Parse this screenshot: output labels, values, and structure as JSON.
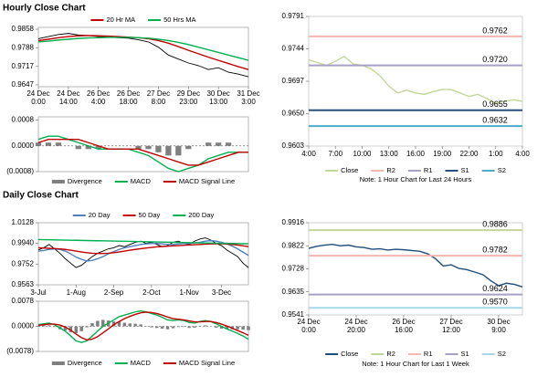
{
  "headings": [
    "Hourly Close Chart",
    "Daily Close Chart"
  ],
  "chart_data": [
    {
      "type": "line",
      "legend": "top",
      "xlim": [
        0,
        21
      ],
      "ylim": [
        0.964,
        0.9865
      ],
      "yticks": [
        0.9858,
        0.9788,
        0.9717,
        0.9647
      ],
      "xticks": [
        {
          "value": 0,
          "label": [
            "24 Dec",
            "0:00"
          ]
        },
        {
          "value": 3,
          "label": [
            "24 Dec",
            "14:00"
          ]
        },
        {
          "value": 6,
          "label": [
            "26 Dec",
            "4:00"
          ]
        },
        {
          "value": 9,
          "label": [
            "26 Dec",
            "18:00"
          ]
        },
        {
          "value": 12,
          "label": [
            "27 Dec",
            "8:00"
          ]
        },
        {
          "value": 15,
          "label": [
            "29 Dec",
            "23:00"
          ]
        },
        {
          "value": 18,
          "label": [
            "30 Dec",
            "13:00"
          ]
        },
        {
          "value": 21,
          "label": [
            "31 Dec",
            "3:00"
          ]
        }
      ],
      "series": [
        {
          "color": "#000000",
          "values": [
            0.9822,
            0.983,
            0.9838,
            0.9842,
            0.9836,
            0.9834,
            0.983,
            0.9828,
            0.9826,
            0.9824,
            0.9818,
            0.981,
            0.979,
            0.976,
            0.9745,
            0.973,
            0.972,
            0.9705,
            0.9712,
            0.9695,
            0.9688,
            0.9678
          ]
        },
        {
          "name": "20 Hr MA",
          "color": "#c00000",
          "values": [
            0.9815,
            0.982,
            0.9826,
            0.983,
            0.9833,
            0.9834,
            0.9833,
            0.9832,
            0.983,
            0.9828,
            0.9826,
            0.9822,
            0.9815,
            0.9805,
            0.9792,
            0.9778,
            0.9765,
            0.9752,
            0.974,
            0.9728,
            0.9716,
            0.9705
          ]
        },
        {
          "name": "50 Hrs MA",
          "color": "#00b050",
          "values": [
            0.981,
            0.9813,
            0.9817,
            0.982,
            0.9823,
            0.9825,
            0.9826,
            0.9827,
            0.9827,
            0.9827,
            0.9826,
            0.9824,
            0.982,
            0.9815,
            0.9808,
            0.98,
            0.979,
            0.978,
            0.977,
            0.976,
            0.975,
            0.974
          ]
        }
      ]
    },
    {
      "type": "line",
      "legend": "bottom",
      "zero_line": true,
      "xlim": [
        0,
        21
      ],
      "ylim": [
        -0.0008,
        0.0009
      ],
      "yticks": [
        0.0008,
        {
          "value": 0,
          "label": "0.0000"
        },
        {
          "value": -0.0008,
          "label": "(0.0008)"
        }
      ],
      "series": [
        {
          "name": "Divergence",
          "kind": "bar",
          "color": "#7f7f7f",
          "values": [
            0.0001,
            0.0001,
            0.0001,
            0,
            -0.0001,
            -0.0001,
            -0.0001,
            0,
            0,
            0,
            -0.0001,
            -0.0001,
            -0.0002,
            -0.0003,
            -0.0003,
            -0.0001,
            0,
            0.0001,
            0.0001,
            0.0001,
            0,
            0
          ]
        },
        {
          "name": "MACD",
          "color": "#00b050",
          "values": [
            0.0002,
            0.0003,
            0.0003,
            0.0002,
            0.0001,
            0,
            -0.0001,
            -0.0001,
            -0.0001,
            -0.0001,
            -0.0002,
            -0.0003,
            -0.0005,
            -0.0007,
            -0.0008,
            -0.0007,
            -0.0006,
            -0.0004,
            -0.0003,
            -0.0002,
            -0.0002,
            -0.0002
          ]
        },
        {
          "name": "MACD Signal Line",
          "color": "#c00000",
          "values": [
            0.0001,
            0.0002,
            0.0002,
            0.0002,
            0.0002,
            0.0001,
            0,
            -0.0001,
            -0.0001,
            -0.0001,
            -0.0001,
            -0.0002,
            -0.0003,
            -0.0004,
            -0.0005,
            -0.0006,
            -0.0006,
            -0.0005,
            -0.0004,
            -0.0003,
            -0.0002,
            -0.0002
          ]
        }
      ]
    },
    {
      "type": "line",
      "legend": "bottom",
      "note": "Note: 1 Hour Chart for Last 24 Hours",
      "xlim": [
        0,
        24
      ],
      "ylim": [
        0.9603,
        0.9791
      ],
      "yticks": [
        0.9791,
        0.9744,
        0.9697,
        {
          "value": 0.965,
          "label": "0.9650"
        },
        0.9603
      ],
      "xticks": [
        {
          "value": 0,
          "label": "4:00"
        },
        {
          "value": 3,
          "label": "7:00"
        },
        {
          "value": 6,
          "label": "10:00"
        },
        {
          "value": 9,
          "label": "13:00"
        },
        {
          "value": 12,
          "label": "16:00"
        },
        {
          "value": 15,
          "label": "19:00"
        },
        {
          "value": 18,
          "label": "22:00"
        },
        {
          "value": 21,
          "label": "1:00"
        },
        {
          "value": 24,
          "label": "4:00"
        }
      ],
      "series": [
        {
          "name": "Close",
          "color": "#c3d69b",
          "values": [
            0.9728,
            0.9724,
            0.972,
            0.9726,
            0.9733,
            0.9722,
            0.972,
            0.9715,
            0.9705,
            0.969,
            0.968,
            0.9684,
            0.968,
            0.9678,
            0.9682,
            0.9685,
            0.9685,
            0.968,
            0.9675,
            0.9678,
            0.9672,
            0.9665,
            0.9668,
            0.967,
            0.9668
          ]
        },
        {
          "name": "R2",
          "kind": "level",
          "color": "#f2b8b0",
          "values": [
            0.9762
          ],
          "value_labels": [
            "0.9762"
          ]
        },
        {
          "name": "R1",
          "kind": "level",
          "color": "#a9a0c8",
          "values": [
            0.972
          ],
          "value_labels": [
            "0.9720"
          ]
        },
        {
          "name": "S1",
          "kind": "level",
          "color": "#2c4f7c",
          "values": [
            0.9655
          ],
          "value_labels": [
            "0.9655"
          ]
        },
        {
          "name": "S2",
          "kind": "level",
          "color": "#4bacc6",
          "values": [
            0.9632
          ],
          "value_labels": [
            "0.9632"
          ]
        }
      ]
    },
    {
      "type": "line",
      "legend": "top",
      "xlim": [
        0,
        39
      ],
      "ylim": [
        0.9563,
        1.0128
      ],
      "yticks": [
        1.0128,
        {
          "value": 0.994,
          "label": "0.9940"
        },
        0.9752,
        0.9563
      ],
      "xticks": [
        {
          "value": 0,
          "label": "3-Jul"
        },
        {
          "value": 7,
          "label": "1-Aug"
        },
        {
          "value": 14,
          "label": "2-Sep"
        },
        {
          "value": 21,
          "label": "2-Oct"
        },
        {
          "value": 28,
          "label": "1-Nov"
        },
        {
          "value": 34,
          "label": "3-Dec"
        }
      ],
      "series": [
        {
          "color": "#000000",
          "values": [
            0.988,
            0.99,
            0.993,
            0.989,
            0.985,
            0.98,
            0.976,
            0.972,
            0.974,
            0.978,
            0.982,
            0.985,
            0.987,
            0.989,
            0.99,
            0.992,
            0.991,
            0.993,
            0.995,
            0.996,
            0.994,
            0.995,
            0.993,
            0.991,
            0.992,
            0.995,
            0.996,
            0.994,
            0.993,
            0.996,
            0.998,
            0.999,
            0.997,
            0.994,
            0.992,
            0.988,
            0.985,
            0.982,
            0.976,
            0.972
          ]
        },
        {
          "name": "20 Day",
          "color": "#4f81bd",
          "values": [
            0.987,
            0.9875,
            0.9885,
            0.989,
            0.9885,
            0.987,
            0.9845,
            0.9815,
            0.9795,
            0.978,
            0.9785,
            0.98,
            0.982,
            0.9845,
            0.9865,
            0.9885,
            0.99,
            0.991,
            0.992,
            0.993,
            0.9935,
            0.994,
            0.994,
            0.9935,
            0.993,
            0.993,
            0.9935,
            0.994,
            0.994,
            0.9945,
            0.995,
            0.996,
            0.9965,
            0.996,
            0.995,
            0.9935,
            0.9915,
            0.989,
            0.986,
            0.983
          ]
        },
        {
          "name": "50 Day",
          "color": "#c00000",
          "values": [
            0.99,
            0.9898,
            0.9895,
            0.9893,
            0.989,
            0.9885,
            0.9878,
            0.987,
            0.9862,
            0.9855,
            0.985,
            0.9848,
            0.9848,
            0.985,
            0.9855,
            0.9862,
            0.987,
            0.9878,
            0.9885,
            0.9892,
            0.9898,
            0.9903,
            0.9908,
            0.9912,
            0.9915,
            0.9918,
            0.992,
            0.9923,
            0.9925,
            0.9928,
            0.993,
            0.9933,
            0.9935,
            0.9936,
            0.9936,
            0.9934,
            0.993,
            0.9925,
            0.9918,
            0.991
          ]
        },
        {
          "name": "200 Day",
          "color": "#00b050",
          "values": [
            0.9975,
            0.9974,
            0.9973,
            0.9972,
            0.9971,
            0.997,
            0.9969,
            0.9968,
            0.9967,
            0.9966,
            0.9965,
            0.9964,
            0.9963,
            0.9962,
            0.9961,
            0.996,
            0.9959,
            0.9958,
            0.9957,
            0.9956,
            0.9955,
            0.9954,
            0.9953,
            0.9952,
            0.9951,
            0.995,
            0.9949,
            0.9948,
            0.9947,
            0.9946,
            0.9945,
            0.9944,
            0.9943,
            0.9942,
            0.9941,
            0.994,
            0.9939,
            0.9938,
            0.9937,
            0.9936
          ]
        }
      ]
    },
    {
      "type": "line",
      "legend": "bottom",
      "zero_line": true,
      "xlim": [
        0,
        39
      ],
      "ylim": [
        -0.0078,
        0.0078
      ],
      "yticks": [
        0.0078,
        {
          "value": 0,
          "label": "0.0000"
        },
        {
          "value": -0.0078,
          "label": "(0.0078)"
        }
      ],
      "series": [
        {
          "name": "Divergence",
          "kind": "bar",
          "color": "#7f7f7f",
          "values": [
            0.0002,
            0.0003,
            0.0003,
            -0.0002,
            -0.0009,
            -0.0013,
            -0.0018,
            -0.0021,
            -0.0015,
            -0.0003,
            0.001,
            0.0017,
            0.002,
            0.0018,
            0.0015,
            0.0015,
            0.0011,
            0.0009,
            0.0008,
            0.0006,
            0.0001,
            -0.0003,
            -0.0005,
            -0.0007,
            -0.0009,
            -0.0006,
            -0.0002,
            -0.0002,
            -0.0005,
            -0.0004,
            0.0001,
            0.0003,
            0,
            -0.0004,
            -0.0007,
            -0.0009,
            -0.0009,
            -0.0009,
            -0.001,
            -0.0012
          ]
        },
        {
          "name": "MACD",
          "color": "#00b050",
          "values": [
            0.0005,
            0.0008,
            0.001,
            0.0005,
            -0.0005,
            -0.0015,
            -0.003,
            -0.0045,
            -0.005,
            -0.0045,
            -0.003,
            -0.0015,
            0,
            0.001,
            0.002,
            0.003,
            0.0035,
            0.004,
            0.0045,
            0.0048,
            0.0045,
            0.004,
            0.0035,
            0.0028,
            0.002,
            0.0018,
            0.002,
            0.0018,
            0.0012,
            0.001,
            0.0015,
            0.0018,
            0.0015,
            0.0008,
            0,
            -0.0008,
            -0.0015,
            -0.0022,
            -0.003,
            -0.004
          ]
        },
        {
          "name": "MACD Signal Line",
          "color": "#c00000",
          "values": [
            0.0003,
            0.0005,
            0.0007,
            0.0007,
            0.0004,
            -0.0002,
            -0.0012,
            -0.0024,
            -0.0035,
            -0.0042,
            -0.004,
            -0.0032,
            -0.002,
            -0.0008,
            0.0005,
            0.0015,
            0.0024,
            0.0031,
            0.0037,
            0.0042,
            0.0044,
            0.0043,
            0.004,
            0.0035,
            0.0029,
            0.0024,
            0.0022,
            0.002,
            0.0017,
            0.0014,
            0.0014,
            0.0015,
            0.0015,
            0.0012,
            0.0007,
            0.0001,
            -0.0006,
            -0.0013,
            -0.002,
            -0.0028
          ]
        }
      ]
    },
    {
      "type": "line",
      "legend": "bottom",
      "note": "Note: 1 Hour Chart for Last 1 Week",
      "xlim": [
        0,
        27
      ],
      "ylim": [
        0.9541,
        0.9916
      ],
      "yticks": [
        0.9916,
        0.9822,
        0.9728,
        0.9635,
        0.9541
      ],
      "xticks": [
        {
          "value": 0,
          "label": [
            "24 Dec",
            "0:00"
          ]
        },
        {
          "value": 6,
          "label": [
            "24 Dec",
            "20:00"
          ]
        },
        {
          "value": 12,
          "label": [
            "26 Dec",
            "16:00"
          ]
        },
        {
          "value": 18,
          "label": [
            "27 Dec",
            "12:00"
          ]
        },
        {
          "value": 24,
          "label": [
            "30 Dec",
            "9:00"
          ]
        }
      ],
      "series": [
        {
          "name": "Close",
          "color": "#1f4e79",
          "values": [
            0.9812,
            0.982,
            0.9825,
            0.9828,
            0.9822,
            0.9825,
            0.9818,
            0.9815,
            0.9808,
            0.981,
            0.9805,
            0.9808,
            0.9806,
            0.9803,
            0.98,
            0.979,
            0.977,
            0.974,
            0.9745,
            0.973,
            0.9725,
            0.9715,
            0.9705,
            0.968,
            0.966,
            0.967,
            0.9665,
            0.9655
          ]
        },
        {
          "name": "R2",
          "kind": "level",
          "color": "#c3d69b",
          "values": [
            0.9886
          ],
          "value_labels": [
            "0.9886"
          ]
        },
        {
          "name": "R1",
          "kind": "level",
          "color": "#f2b8b0",
          "values": [
            0.9782
          ],
          "value_labels": [
            "0.9782"
          ]
        },
        {
          "name": "S1",
          "kind": "level",
          "color": "#a9a0c8",
          "values": [
            0.9624
          ],
          "value_labels": [
            "0.9624"
          ]
        },
        {
          "name": "S2",
          "kind": "level",
          "color": "#a6d8e8",
          "values": [
            0.957
          ],
          "value_labels": [
            "0.9570"
          ]
        }
      ]
    }
  ]
}
